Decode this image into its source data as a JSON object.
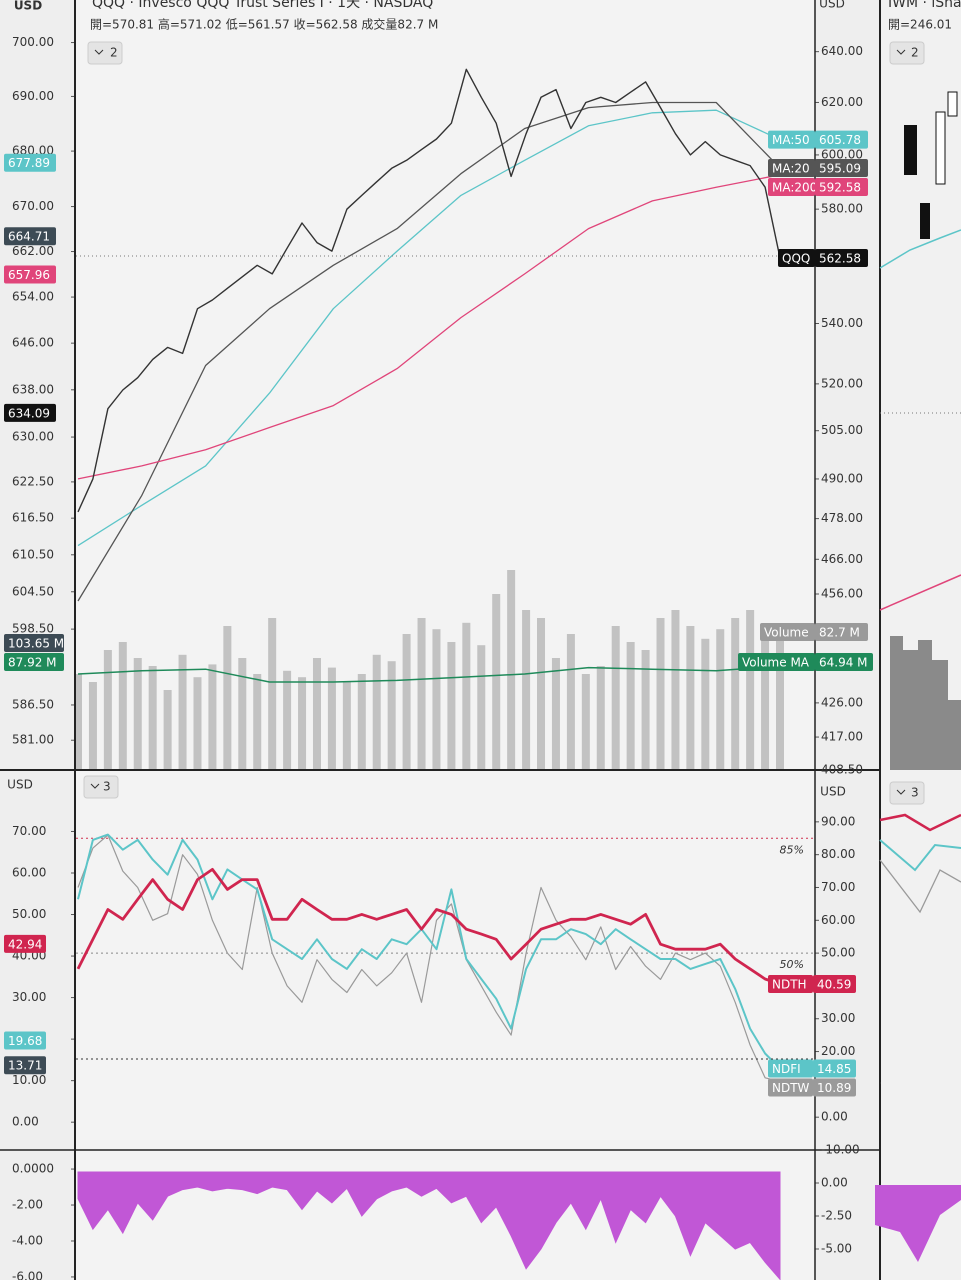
{
  "header": {
    "title": "QQQ · Invesco QQQ Trust Series I · 1天 · NASDAQ",
    "ohlc": "開=570.81 高=571.02 低=561.57 收=562.58 成交量82.7 M",
    "currency": "USD",
    "collapse_price": "2",
    "collapse_breadth": "3"
  },
  "side_panel": {
    "title": "IWM · iSha",
    "ohlc": "開=246.01",
    "collapse_price": "2",
    "collapse_breadth": "3"
  },
  "price_pane": {
    "log_scale": true,
    "ylim": [
      408.5,
      661
    ],
    "yticks": [
      {
        "value": 408.5,
        "label": "408.50"
      },
      {
        "value": 417,
        "label": "417.00"
      },
      {
        "value": 426,
        "label": "426.00"
      },
      {
        "value": 456,
        "label": "456.00"
      },
      {
        "value": 466,
        "label": "466.00"
      },
      {
        "value": 478,
        "label": "478.00"
      },
      {
        "value": 490,
        "label": "490.00"
      },
      {
        "value": 505,
        "label": "505.00"
      },
      {
        "value": 520,
        "label": "520.00"
      },
      {
        "value": 540,
        "label": "540.00"
      },
      {
        "value": 580,
        "label": "580.00"
      },
      {
        "value": 600,
        "label": "600.00"
      },
      {
        "value": 620,
        "label": "620.00"
      },
      {
        "value": 640,
        "label": "640.00"
      }
    ],
    "left_ylim": [
      576.4,
      708
    ],
    "left_yticks": [
      {
        "value": 700,
        "label": "700.00"
      },
      {
        "value": 690,
        "label": "690.00"
      },
      {
        "value": 680,
        "label": "680.00"
      },
      {
        "value": 670,
        "label": "670.00"
      },
      {
        "value": 662,
        "label": "662.00"
      },
      {
        "value": 654,
        "label": "654.00"
      },
      {
        "value": 646,
        "label": "646.00"
      },
      {
        "value": 638,
        "label": "638.00"
      },
      {
        "value": 630,
        "label": "630.00"
      },
      {
        "value": 622.5,
        "label": "622.50"
      },
      {
        "value": 616.5,
        "label": "616.50"
      },
      {
        "value": 610.5,
        "label": "610.50"
      },
      {
        "value": 604.5,
        "label": "604.50"
      },
      {
        "value": 598.5,
        "label": "598.50"
      },
      {
        "value": 586.5,
        "label": "586.50"
      },
      {
        "value": 581,
        "label": "581.00"
      }
    ],
    "symbol": "QQQ",
    "color": "#333333",
    "closes": [
      480,
      490,
      512,
      518,
      522,
      528,
      532,
      530,
      545,
      548,
      552,
      556,
      560,
      557,
      566,
      575,
      568,
      565,
      580,
      585,
      590,
      595,
      598,
      602,
      606,
      612,
      633,
      622,
      612,
      592,
      608,
      622,
      625,
      610,
      620,
      622,
      620,
      624,
      628,
      618,
      608,
      600,
      605,
      600,
      598,
      596,
      588,
      562.58
    ],
    "ma": [
      {
        "name": "MA:50",
        "color": "#5cc5c8",
        "values": [
          470,
          482,
          494,
          517,
          545,
          565,
          585,
          598,
          611,
          616,
          617,
          605.78
        ]
      },
      {
        "name": "MA:20",
        "color": "#555555",
        "values": [
          454,
          485,
          526,
          545,
          560,
          573,
          593,
          610,
          618,
          620,
          620,
          595.09
        ]
      },
      {
        "name": "MA:200",
        "color": "#e0457a",
        "values": [
          490,
          494,
          499,
          506,
          513,
          525,
          542,
          557,
          573,
          583,
          588,
          592.58
        ]
      }
    ],
    "left_badges": [
      {
        "value": 677.89,
        "color": "#5cc5c8"
      },
      {
        "value": 664.71,
        "color": "#3d4b55"
      },
      {
        "value": 657.96,
        "color": "#e0457a"
      },
      {
        "value": 634.09,
        "color": "#111111"
      }
    ],
    "volume_ylim": [
      0,
      250
    ],
    "volume_name": "Volume",
    "volume_color": "#b5b5b5",
    "volumes": [
      60,
      55,
      75,
      80,
      70,
      65,
      50,
      72,
      58,
      66,
      90,
      70,
      60,
      95,
      62,
      58,
      70,
      64,
      55,
      60,
      72,
      68,
      85,
      95,
      88,
      80,
      92,
      78,
      110,
      125,
      100,
      95,
      70,
      85,
      60,
      65,
      90,
      80,
      75,
      95,
      100,
      90,
      82,
      88,
      95,
      100,
      90,
      82.7
    ],
    "volume_last_label": "82.7 M",
    "volume_ma": {
      "name": "Volume MA",
      "color": "#1f8a5a",
      "values": [
        60,
        62,
        63,
        55,
        55,
        56,
        58,
        60,
        64,
        63,
        62,
        64.94
      ],
      "last_label": "64.94 M"
    },
    "left_volume_badges": [
      {
        "value": 103.65,
        "label": "103.65 M",
        "color": "#3d4b55"
      },
      {
        "value": 87.92,
        "label": "87.92 M",
        "color": "#1f8a5a"
      }
    ]
  },
  "breadth_pane": {
    "ylim": [
      -10,
      105.8
    ],
    "yticks": [
      {
        "value": -10,
        "label": "-10.00"
      },
      {
        "value": 0,
        "label": "0.00"
      },
      {
        "value": 10,
        "label": "10.00"
      },
      {
        "value": 20,
        "label": "20.00"
      },
      {
        "value": 30,
        "label": "30.00"
      },
      {
        "value": 40,
        "label": "40.00"
      },
      {
        "value": 50,
        "label": "50.00"
      },
      {
        "value": 60,
        "label": "60.00"
      },
      {
        "value": 70,
        "label": "70.00"
      },
      {
        "value": 80,
        "label": "80.00"
      },
      {
        "value": 90,
        "label": "90.00"
      }
    ],
    "left_ylim": [
      -6.7,
      84.8
    ],
    "left_yticks": [
      {
        "value": 0,
        "label": "0.00"
      },
      {
        "value": 10,
        "label": "10.00"
      },
      {
        "value": 20,
        "label": "20.00"
      },
      {
        "value": 30,
        "label": "30.00"
      },
      {
        "value": 40,
        "label": "40.00"
      },
      {
        "value": 50,
        "label": "50.00"
      },
      {
        "value": 60,
        "label": "60.00"
      },
      {
        "value": 70,
        "label": "70.00"
      }
    ],
    "levels": [
      {
        "value": 85,
        "label": "85%",
        "color": "#d03050"
      },
      {
        "value": 50,
        "label": "50%",
        "color": "#888888"
      }
    ],
    "series": [
      {
        "name": "NDTW",
        "color": "#9a9a9a",
        "values": [
          70,
          82,
          86,
          75,
          70,
          60,
          62,
          80,
          74,
          60,
          50,
          45,
          70,
          50,
          40,
          35,
          48,
          42,
          38,
          45,
          40,
          44,
          50,
          35,
          60,
          65,
          48,
          40,
          32,
          25,
          50,
          70,
          60,
          55,
          48,
          58,
          45,
          52,
          46,
          42,
          50,
          48,
          50,
          46,
          35,
          22,
          12,
          10.89
        ]
      },
      {
        "name": "NDFI",
        "color": "#5cc5c8",
        "values": [
          66.4,
          84.5,
          86.1,
          81.5,
          84.5,
          78.5,
          73.9,
          84.5,
          78.5,
          66.4,
          75.5,
          72.4,
          69.4,
          54.2,
          51.2,
          48.2,
          54.2,
          48.2,
          45.2,
          51.2,
          48.2,
          54.2,
          52.7,
          57.3,
          51.2,
          69.4,
          48.2,
          42.1,
          36.1,
          27.0,
          45.2,
          54.2,
          54.2,
          57.3,
          55.8,
          52.7,
          57.3,
          54.2,
          51.2,
          48.2,
          48.2,
          45.2,
          46.7,
          48.2,
          39.1,
          27.0,
          19.4,
          14.85
        ]
      },
      {
        "name": "NDTH",
        "color": "#d0254f",
        "values": [
          45.2,
          54.2,
          63.3,
          60.3,
          66.4,
          72.4,
          66.4,
          63.3,
          72.4,
          75.5,
          69.4,
          72.4,
          72.4,
          60.3,
          60.3,
          66.4,
          63.3,
          60.3,
          60.3,
          61.8,
          60.3,
          61.8,
          63.3,
          57.3,
          63.3,
          61.8,
          57.3,
          55.8,
          54.2,
          48.2,
          52.7,
          57.3,
          58.8,
          60.3,
          60.3,
          61.8,
          60.3,
          58.8,
          61.8,
          52.7,
          51.2,
          51.2,
          51.2,
          52.7,
          48.2,
          45.2,
          42.1,
          40.59
        ]
      }
    ],
    "left_badges": [
      {
        "value": 42.94,
        "color": "#d0254f"
      },
      {
        "value": 19.68,
        "color": "#5cc5c8"
      },
      {
        "value": 13.71,
        "color": "#3d4b55"
      }
    ]
  },
  "osc_pane": {
    "ylim": [
      -7.35,
      2.5
    ],
    "yticks": [
      {
        "value": 0,
        "label": "0.00"
      },
      {
        "value": -2.5,
        "label": "-2.50"
      },
      {
        "value": -5,
        "label": "-5.00"
      }
    ],
    "left_ylim": [
      -6.17,
      1.06
    ],
    "left_yticks": [
      {
        "value": 0,
        "label": "0.0000"
      },
      {
        "value": -2,
        "label": "-2.00"
      },
      {
        "value": -4,
        "label": "-4.00"
      },
      {
        "value": -6,
        "label": "-6.00"
      }
    ],
    "color": "#c157d6",
    "values": [
      -1.2,
      -3.5,
      -2.0,
      -3.8,
      -1.5,
      -2.8,
      -1.0,
      -0.5,
      -0.3,
      -0.6,
      -0.4,
      -0.5,
      -0.8,
      -0.3,
      -0.5,
      -2.0,
      -0.6,
      -1.5,
      -0.4,
      -2.5,
      -1.2,
      -0.6,
      -0.3,
      -1.0,
      -0.4,
      -1.5,
      -1.0,
      -3.0,
      -1.8,
      -4.0,
      -6.5,
      -5.0,
      -3.0,
      -1.5,
      -3.5,
      -1.2,
      -4.5,
      -2.0,
      -3.0,
      -1.0,
      -2.5,
      -5.5,
      -3.0,
      -4.0,
      -5.0,
      -4.5,
      -6.0,
      -7.3
    ]
  }
}
